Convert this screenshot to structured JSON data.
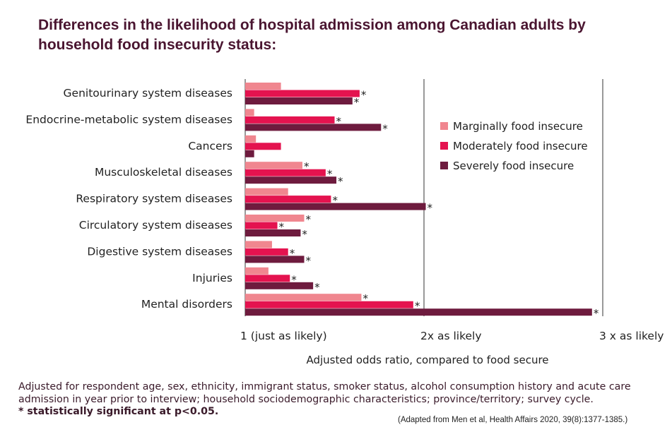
{
  "chart_data": {
    "type": "bar",
    "orientation": "horizontal",
    "title": "Differences in the likelihood of hospital admission among Canadian adults by household food insecurity status:",
    "xlabel": "Adjusted odds ratio, compared to food secure",
    "xlim": [
      1,
      3
    ],
    "xticks": [
      {
        "value": 1,
        "label": "1 (just as likely)"
      },
      {
        "value": 2,
        "label": "2x as likely"
      },
      {
        "value": 3,
        "label": "3 x as likely"
      }
    ],
    "grid": "vertical lines at 2 and 3",
    "legend_position": "right",
    "categories": [
      "Genitourinary system diseases",
      "Endocrine-metabolic system diseases",
      "Cancers",
      "Musculoskeletal diseases",
      "Respiratory system diseases",
      "Circulatory system diseases",
      "Digestive system diseases",
      "Injuries",
      "Mental disorders"
    ],
    "series": [
      {
        "name": "Marginally food insecure",
        "color": "#f0868f",
        "values": [
          1.2,
          1.05,
          1.06,
          1.32,
          1.24,
          1.33,
          1.15,
          1.13,
          1.65
        ],
        "significant": [
          false,
          false,
          false,
          true,
          false,
          true,
          false,
          false,
          true
        ]
      },
      {
        "name": "Moderately food insecure",
        "color": "#e4134f",
        "values": [
          1.64,
          1.5,
          1.2,
          1.45,
          1.48,
          1.18,
          1.24,
          1.25,
          1.94
        ],
        "significant": [
          true,
          true,
          false,
          true,
          true,
          true,
          true,
          true,
          true
        ]
      },
      {
        "name": "Severely food insecure",
        "color": "#6e1b3e",
        "values": [
          1.6,
          1.76,
          1.05,
          1.51,
          2.01,
          1.31,
          1.33,
          1.38,
          2.94
        ],
        "significant": [
          true,
          true,
          false,
          true,
          true,
          true,
          true,
          true,
          true
        ]
      }
    ],
    "significance_marker": "*"
  },
  "footnote": {
    "text": "Adjusted for respondent age, sex, ethnicity, immigrant status, smoker status, alcohol consumption history and acute care admission in year prior to interview; household sociodemographic characteristics; province/territory; survey cycle.",
    "significance_note": "* statistically significant at p<0.05."
  },
  "source": "(Adapted from Men et al, Health Affairs 2020, 39(8):1377-1385.)"
}
